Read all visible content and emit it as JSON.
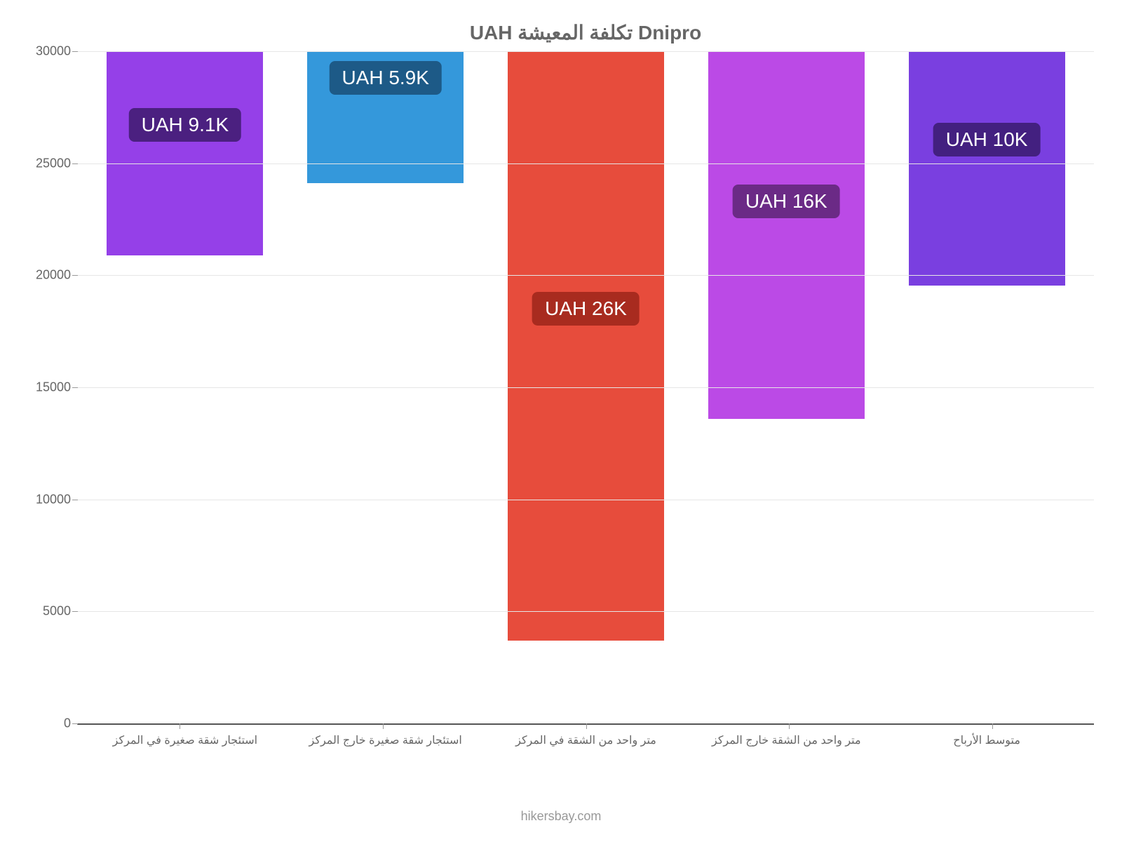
{
  "chart": {
    "type": "bar",
    "title": "Dnipro تكلفة المعيشة UAH",
    "title_color": "#666666",
    "title_fontsize": 28,
    "background_color": "#ffffff",
    "grid_color": "#e6e6e6",
    "axis_color": "#555555",
    "tick_label_color": "#666666",
    "tick_label_fontsize": 18,
    "x_label_fontsize": 16,
    "x_label_color": "#666666",
    "ylim": [
      0,
      30000
    ],
    "ytick_step": 5000,
    "yticks": [
      0,
      5000,
      10000,
      15000,
      20000,
      25000,
      30000
    ],
    "bar_width_pct": 78,
    "categories": [
      "استئجار شقة صغيرة في المركز",
      "استئجار شقة صغيرة خارج المركز",
      "متر واحد من الشقة في المركز",
      "متر واحد من الشقة خارج المركز",
      "متوسط الأرباح"
    ],
    "values": [
      9100,
      5900,
      26300,
      16400,
      10450
    ],
    "value_labels": [
      "UAH 9.1K",
      "UAH 5.9K",
      "UAH 26K",
      "UAH 16K",
      "UAH 10K"
    ],
    "bar_colors": [
      "#9540e8",
      "#3498db",
      "#e74c3c",
      "#bb4ae6",
      "#7a3fe0"
    ],
    "badge_colors": [
      "#4b2080",
      "#1d5a87",
      "#a82b1f",
      "#6b2a86",
      "#432080"
    ],
    "badge_text_color": "#ffffff",
    "badge_fontsize": 28,
    "badge_y_positions": [
      5800,
      4700,
      14800,
      9700,
      6500
    ],
    "footer_text": "hikersbay.com",
    "footer_color": "#999999",
    "footer_fontsize": 18
  }
}
